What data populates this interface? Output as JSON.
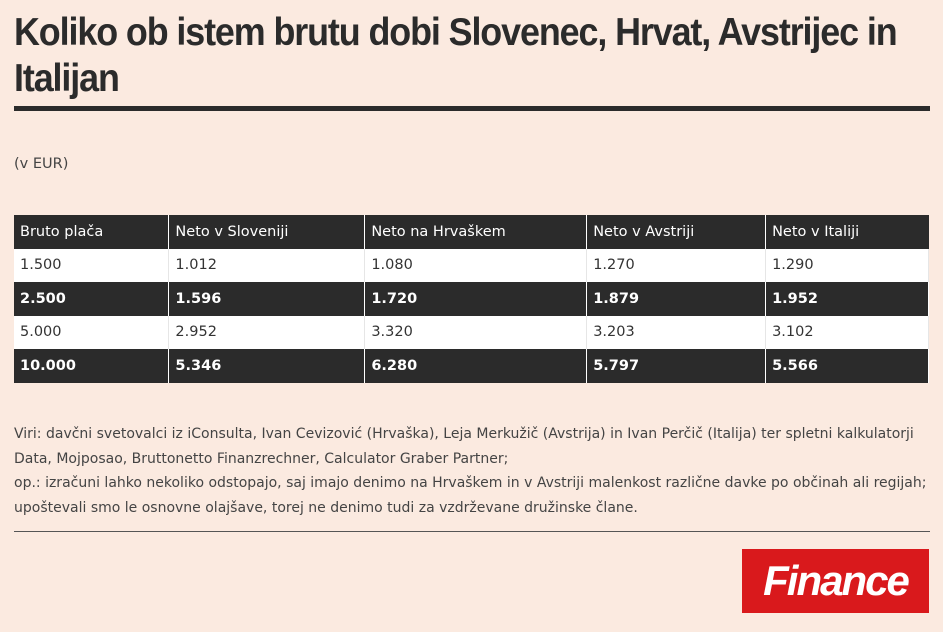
{
  "title": "Koliko ob istem brutu dobi Slovenec, Hrvat, Avstrijec in Italijan",
  "unit": "(v EUR)",
  "chart_data": {
    "type": "table",
    "columns": [
      "Bruto plača",
      "Neto v Sloveniji",
      "Neto na Hrvaškem",
      "Neto v Avstriji",
      "Neto v Italiji"
    ],
    "rows": [
      [
        "1.500",
        "1.012",
        "1.080",
        "1.270",
        "1.290"
      ],
      [
        "2.500",
        "1.596",
        "1.720",
        "1.879",
        "1.952"
      ],
      [
        "5.000",
        "2.952",
        "3.320",
        "3.203",
        "3.102"
      ],
      [
        "10.000",
        "5.346",
        "6.280",
        "5.797",
        "5.566"
      ]
    ]
  },
  "notes": {
    "sources": "Viri: davčni svetovalci iz iConsulta, Ivan Cevizović (Hrvaška), Leja Merkužič (Avstrija) in Ivan Perčič (Italija) ter spletni kalkulatorji Data, Mojposao, Bruttonetto Finanzrechner, Calculator Graber Partner;",
    "remark": "op.: izračuni lahko nekoliko odstopajo, saj imajo denimo na Hrvaškem in v Avstriji malenkost različne davke po občinah ali regijah; upoštevali smo le osnovne olajšave, torej ne denimo tudi za vzdrževane družinske člane."
  },
  "logo": {
    "text": "Finance",
    "color": "#d9191c"
  },
  "colors": {
    "background": "#fbeae0",
    "dark": "#2b2b2b",
    "light_row": "#ffffff"
  }
}
